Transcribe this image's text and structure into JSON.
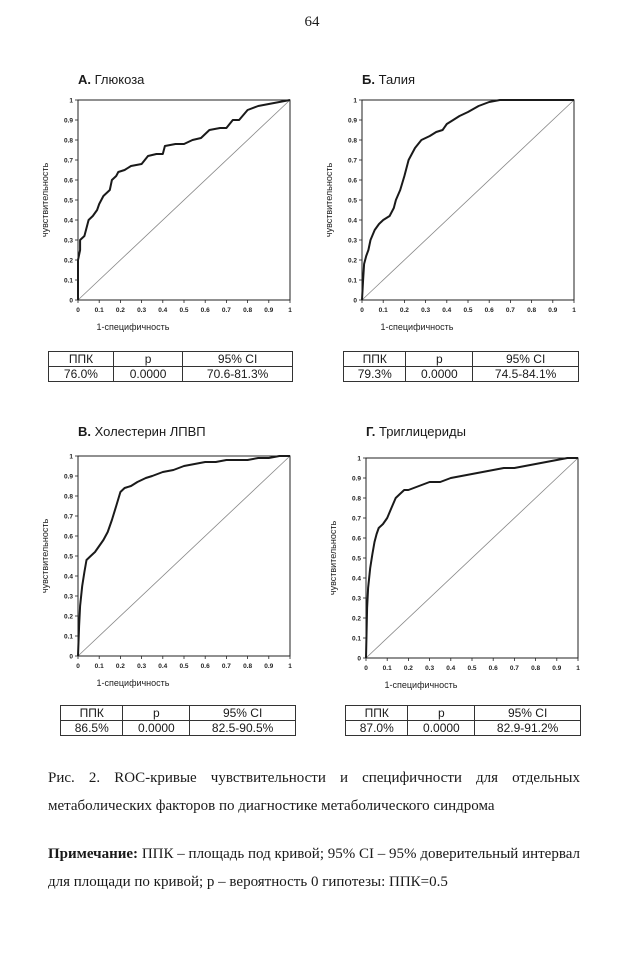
{
  "page_number": "64",
  "charts": [
    {
      "letter": "А.",
      "name": "Глюкоза",
      "xlabel": "1-специфичность",
      "ylabel": "чувствительность",
      "ticks": [
        "0",
        "0.1",
        "0.2",
        "0.3",
        "0.4",
        "0.5",
        "0.6",
        "0.7",
        "0.8",
        "0.9",
        "1"
      ],
      "table": {
        "headers": [
          "ППК",
          "p",
          "95% CI"
        ],
        "values": [
          "76.0%",
          "0.0000",
          "70.6-81.3%"
        ]
      }
    },
    {
      "letter": "Б.",
      "name": "Талия",
      "xlabel": "1-специфичность",
      "ylabel": "чувствительность",
      "ticks": [
        "0",
        "0.1",
        "0.2",
        "0.3",
        "0.4",
        "0.5",
        "0.6",
        "0.7",
        "0.8",
        "0.9",
        "1"
      ],
      "table": {
        "headers": [
          "ППК",
          "p",
          "95% CI"
        ],
        "values": [
          "79.3%",
          "0.0000",
          "74.5-84.1%"
        ]
      }
    },
    {
      "letter": "В.",
      "name": "Холестерин ЛПВП",
      "xlabel": "1-специфичность",
      "ylabel": "чувствительность",
      "ticks": [
        "0",
        "0.1",
        "0.2",
        "0.3",
        "0.4",
        "0.5",
        "0.6",
        "0.7",
        "0.8",
        "0.9",
        "1"
      ],
      "table": {
        "headers": [
          "ППК",
          "p",
          "95% CI"
        ],
        "values": [
          "86.5%",
          "0.0000",
          "82.5-90.5%"
        ]
      }
    },
    {
      "letter": "Г.",
      "name": "Триглицериды",
      "xlabel": "1-специфичность",
      "ylabel": "чувствительность",
      "ticks": [
        "0",
        "0.1",
        "0.2",
        "0.3",
        "0.4",
        "0.5",
        "0.6",
        "0.7",
        "0.8",
        "0.9",
        "1"
      ],
      "table": {
        "headers": [
          "ППК",
          "p",
          "95% CI"
        ],
        "values": [
          "87.0%",
          "0.0000",
          "82.9-91.2%"
        ]
      }
    }
  ],
  "chart_data": [
    {
      "type": "line",
      "xlim": [
        0,
        1
      ],
      "ylim": [
        0,
        1
      ],
      "grid": false,
      "legend": "none",
      "title": "А. Глюкоза",
      "xlabel": "1-специфичность",
      "ylabel": "чувствительность",
      "series": [
        {
          "x": [
            0,
            0,
            0.01,
            0.01,
            0.03,
            0.04,
            0.05,
            0.07,
            0.09,
            0.1,
            0.12,
            0.15,
            0.16,
            0.18,
            0.19,
            0.22,
            0.25,
            0.3,
            0.33,
            0.37,
            0.4,
            0.41,
            0.46,
            0.5,
            0.54,
            0.58,
            0.62,
            0.67,
            0.7,
            0.73,
            0.76,
            0.8,
            0.85,
            0.9,
            0.95,
            1.0
          ],
          "y": [
            0,
            0.2,
            0.25,
            0.3,
            0.32,
            0.36,
            0.4,
            0.42,
            0.45,
            0.48,
            0.52,
            0.55,
            0.6,
            0.62,
            0.64,
            0.65,
            0.67,
            0.68,
            0.72,
            0.73,
            0.73,
            0.77,
            0.78,
            0.78,
            0.8,
            0.81,
            0.85,
            0.86,
            0.86,
            0.9,
            0.9,
            0.95,
            0.97,
            0.98,
            0.99,
            1.0
          ]
        },
        {
          "x": [
            0,
            1
          ],
          "y": [
            0,
            1
          ]
        }
      ]
    },
    {
      "type": "line",
      "xlim": [
        0,
        1
      ],
      "ylim": [
        0,
        1
      ],
      "grid": false,
      "legend": "none",
      "title": "Б. Талия",
      "xlabel": "1-специфичность",
      "ylabel": "чувствительность",
      "series": [
        {
          "x": [
            0,
            0.005,
            0.01,
            0.02,
            0.03,
            0.04,
            0.06,
            0.08,
            0.1,
            0.13,
            0.15,
            0.16,
            0.18,
            0.2,
            0.22,
            0.25,
            0.28,
            0.32,
            0.35,
            0.38,
            0.4,
            0.43,
            0.46,
            0.5,
            0.55,
            0.6,
            0.65,
            0.7,
            0.8,
            0.9,
            1.0
          ],
          "y": [
            0,
            0.1,
            0.18,
            0.22,
            0.25,
            0.3,
            0.35,
            0.38,
            0.4,
            0.42,
            0.46,
            0.5,
            0.55,
            0.62,
            0.7,
            0.76,
            0.8,
            0.82,
            0.84,
            0.85,
            0.88,
            0.9,
            0.92,
            0.94,
            0.97,
            0.99,
            1.0,
            1.0,
            1.0,
            1.0,
            1.0
          ]
        },
        {
          "x": [
            0,
            1
          ],
          "y": [
            0,
            1
          ]
        }
      ]
    },
    {
      "type": "line",
      "xlim": [
        0,
        1
      ],
      "ylim": [
        0,
        1
      ],
      "grid": false,
      "legend": "none",
      "title": "В. Холестерин ЛПВП",
      "xlabel": "1-специфичность",
      "ylabel": "чувствительность",
      "series": [
        {
          "x": [
            0,
            0.005,
            0.01,
            0.02,
            0.03,
            0.04,
            0.06,
            0.08,
            0.1,
            0.12,
            0.14,
            0.16,
            0.18,
            0.2,
            0.22,
            0.25,
            0.28,
            0.32,
            0.35,
            0.4,
            0.45,
            0.5,
            0.55,
            0.6,
            0.65,
            0.7,
            0.8,
            0.85,
            0.9,
            0.95,
            1.0
          ],
          "y": [
            0,
            0.15,
            0.25,
            0.35,
            0.42,
            0.48,
            0.5,
            0.52,
            0.55,
            0.58,
            0.62,
            0.68,
            0.75,
            0.82,
            0.84,
            0.85,
            0.87,
            0.89,
            0.9,
            0.92,
            0.93,
            0.95,
            0.96,
            0.97,
            0.97,
            0.98,
            0.98,
            0.99,
            0.99,
            1.0,
            1.0
          ]
        },
        {
          "x": [
            0,
            1
          ],
          "y": [
            0,
            1
          ]
        }
      ]
    },
    {
      "type": "line",
      "xlim": [
        0,
        1
      ],
      "ylim": [
        0,
        1
      ],
      "grid": false,
      "legend": "none",
      "title": "Г. Триглицериды",
      "xlabel": "1-специфичность",
      "ylabel": "чувствительность",
      "series": [
        {
          "x": [
            0,
            0.005,
            0.01,
            0.02,
            0.03,
            0.04,
            0.05,
            0.06,
            0.08,
            0.1,
            0.12,
            0.14,
            0.16,
            0.18,
            0.2,
            0.25,
            0.3,
            0.35,
            0.4,
            0.45,
            0.5,
            0.55,
            0.6,
            0.65,
            0.7,
            0.75,
            0.8,
            0.85,
            0.9,
            0.95,
            1.0
          ],
          "y": [
            0,
            0.25,
            0.35,
            0.45,
            0.52,
            0.58,
            0.62,
            0.65,
            0.67,
            0.7,
            0.75,
            0.8,
            0.82,
            0.84,
            0.84,
            0.86,
            0.88,
            0.88,
            0.9,
            0.91,
            0.92,
            0.93,
            0.94,
            0.95,
            0.95,
            0.96,
            0.97,
            0.98,
            0.99,
            1.0,
            1.0
          ]
        },
        {
          "x": [
            0,
            1
          ],
          "y": [
            0,
            1
          ]
        }
      ]
    }
  ],
  "caption": "Рис. 2. ROC-кривые чувствительности и специфичности для отдельных метаболических факторов по диагностике метаболического синдрома",
  "note": {
    "label": "Примечание:",
    "text": " ППК – площадь под кривой; 95% CI – 95% доверительный интервал для площади по кривой; p – вероятность 0 гипотезы: ППК=0.5"
  }
}
